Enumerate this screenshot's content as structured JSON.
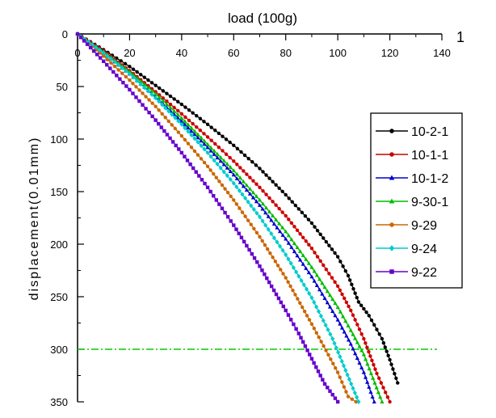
{
  "chart_data": {
    "type": "line",
    "title": "",
    "xlabel": "load (100g)",
    "ylabel": "displacement(0.01mm)",
    "corner_label": "1",
    "xlim": [
      0,
      140
    ],
    "ylim": [
      0,
      350
    ],
    "y_inverted": true,
    "x_axis_position": "top",
    "xticks": [
      0,
      20,
      40,
      60,
      80,
      100,
      120,
      140
    ],
    "yticks": [
      0,
      50,
      100,
      150,
      200,
      250,
      300,
      350
    ],
    "reference_line": {
      "y": 300,
      "color": "#00cc00",
      "style": "dash-dot"
    },
    "legend_position": "right",
    "series": [
      {
        "name": "10-2-1",
        "color": "#000000",
        "marker": "circle",
        "x": [
          0,
          10,
          20,
          30,
          40,
          50,
          60,
          70,
          80,
          90,
          100,
          104,
          108,
          112,
          117,
          120,
          123
        ],
        "y": [
          0,
          15,
          31,
          49,
          67,
          86,
          106,
          128,
          153,
          180,
          212,
          230,
          255,
          268,
          290,
          310,
          332
        ]
      },
      {
        "name": "10-1-1",
        "color": "#cc0000",
        "marker": "circle",
        "x": [
          0,
          10,
          20,
          30,
          40,
          50,
          60,
          70,
          80,
          90,
          100,
          105,
          110,
          115,
          120
        ],
        "y": [
          0,
          16,
          35,
          55,
          76,
          98,
          121,
          146,
          173,
          204,
          240,
          263,
          290,
          323,
          352
        ]
      },
      {
        "name": "10-1-2",
        "color": "#0000cc",
        "marker": "triangle",
        "x": [
          0,
          10,
          20,
          30,
          40,
          50,
          60,
          70,
          80,
          90,
          100,
          105,
          110,
          114
        ],
        "y": [
          0,
          18,
          38,
          60,
          83,
          108,
          134,
          163,
          195,
          231,
          272,
          295,
          322,
          352
        ]
      },
      {
        "name": "9-30-1",
        "color": "#00bb00",
        "marker": "triangle",
        "x": [
          0,
          10,
          20,
          30,
          40,
          50,
          60,
          70,
          80,
          90,
          100,
          105,
          110,
          117
        ],
        "y": [
          0,
          17,
          36,
          57,
          80,
          105,
          130,
          158,
          188,
          222,
          260,
          282,
          305,
          352
        ]
      },
      {
        "name": "9-29",
        "color": "#cc6600",
        "marker": "circle",
        "x": [
          0,
          10,
          20,
          30,
          40,
          50,
          60,
          70,
          80,
          90,
          100,
          104,
          107
        ],
        "y": [
          0,
          21,
          44,
          69,
          97,
          126,
          158,
          193,
          232,
          276,
          322,
          345,
          352
        ]
      },
      {
        "name": "9-24",
        "color": "#00cccc",
        "marker": "diamond",
        "x": [
          0,
          10,
          20,
          30,
          40,
          50,
          60,
          70,
          80,
          90,
          98,
          103,
          108
        ],
        "y": [
          0,
          18,
          38,
          61,
          86,
          113,
          142,
          174,
          210,
          251,
          290,
          320,
          350
        ]
      },
      {
        "name": "9-22",
        "color": "#6600cc",
        "marker": "square",
        "x": [
          0,
          10,
          20,
          30,
          40,
          50,
          60,
          70,
          80,
          85,
          90,
          95,
          100
        ],
        "y": [
          0,
          26,
          53,
          82,
          113,
          146,
          182,
          221,
          263,
          285,
          309,
          333,
          352
        ]
      }
    ]
  }
}
